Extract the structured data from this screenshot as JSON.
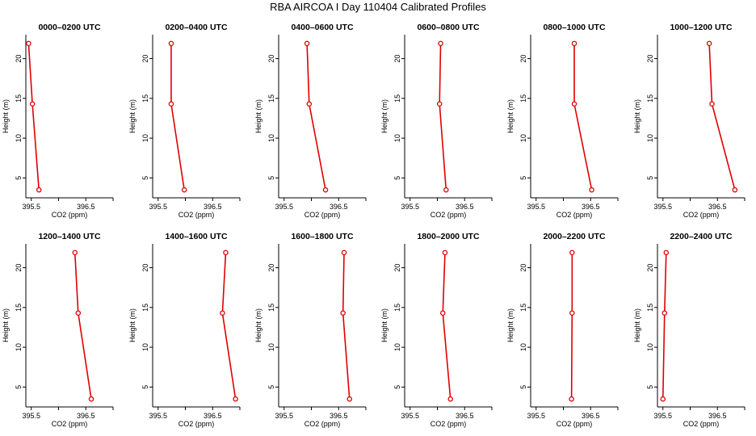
{
  "title": "RBA AIRCOA I  Day 110404  Calibrated Profiles",
  "colors": {
    "line": "#e00000",
    "axis": "#000000",
    "text": "#000000"
  },
  "chart_data": [
    {
      "type": "line",
      "title": "0000–0200 UTC",
      "xlabel": "CO2 (ppm)",
      "ylabel": "Height (m)",
      "xlim": [
        395.4,
        397.0
      ],
      "ylim": [
        2.5,
        23.0
      ],
      "xticks": [
        395.5,
        396.0,
        396.5,
        397.0
      ],
      "xtick_labels": [
        "395.5",
        "",
        "396.5",
        ""
      ],
      "yticks": [
        5,
        10,
        15,
        20
      ],
      "ytick_labels": [
        "5",
        "10",
        "15",
        "20"
      ],
      "series": [
        {
          "name": "CO2",
          "x": [
            395.45,
            395.52,
            395.64
          ],
          "y": [
            21.9,
            14.3,
            3.5
          ]
        }
      ]
    },
    {
      "type": "line",
      "title": "0200–0400 UTC",
      "xlabel": "CO2 (ppm)",
      "ylabel": "Height (m)",
      "xlim": [
        395.4,
        397.0
      ],
      "ylim": [
        2.5,
        23.0
      ],
      "xticks": [
        395.5,
        396.0,
        396.5,
        397.0
      ],
      "xtick_labels": [
        "395.5",
        "",
        "396.5",
        ""
      ],
      "yticks": [
        5,
        10,
        15,
        20
      ],
      "ytick_labels": [
        "5",
        "10",
        "15",
        "20"
      ],
      "series": [
        {
          "name": "CO2",
          "x": [
            395.74,
            395.74,
            395.98
          ],
          "y": [
            21.9,
            14.3,
            3.5
          ]
        }
      ]
    },
    {
      "type": "line",
      "title": "0400–0600 UTC",
      "xlabel": "CO2 (ppm)",
      "ylabel": "Height (m)",
      "xlim": [
        395.4,
        397.0
      ],
      "ylim": [
        2.5,
        23.0
      ],
      "xticks": [
        395.5,
        396.0,
        396.5,
        397.0
      ],
      "xtick_labels": [
        "395.5",
        "",
        "396.5",
        ""
      ],
      "yticks": [
        5,
        10,
        15,
        20
      ],
      "ytick_labels": [
        "5",
        "10",
        "15",
        "20"
      ],
      "series": [
        {
          "name": "CO2",
          "x": [
            395.92,
            395.96,
            396.26
          ],
          "y": [
            21.9,
            14.3,
            3.5
          ]
        }
      ]
    },
    {
      "type": "line",
      "title": "0600–0800 UTC",
      "xlabel": "CO2 (ppm)",
      "ylabel": "Height (m)",
      "xlim": [
        395.4,
        397.0
      ],
      "ylim": [
        2.5,
        23.0
      ],
      "xticks": [
        395.5,
        396.0,
        396.5,
        397.0
      ],
      "xtick_labels": [
        "395.5",
        "",
        "396.5",
        ""
      ],
      "yticks": [
        5,
        10,
        15,
        20
      ],
      "ytick_labels": [
        "5",
        "10",
        "15",
        "20"
      ],
      "series": [
        {
          "name": "CO2",
          "x": [
            396.06,
            396.04,
            396.16
          ],
          "y": [
            21.9,
            14.3,
            3.5
          ]
        }
      ]
    },
    {
      "type": "line",
      "title": "0800–1000 UTC",
      "xlabel": "CO2 (ppm)",
      "ylabel": "Height (m)",
      "xlim": [
        395.4,
        397.0
      ],
      "ylim": [
        2.5,
        23.0
      ],
      "xticks": [
        395.5,
        396.0,
        396.5,
        397.0
      ],
      "xtick_labels": [
        "395.5",
        "",
        "396.5",
        ""
      ],
      "yticks": [
        5,
        10,
        15,
        20
      ],
      "ytick_labels": [
        "5",
        "10",
        "15",
        "20"
      ],
      "series": [
        {
          "name": "CO2",
          "x": [
            396.2,
            396.2,
            396.52
          ],
          "y": [
            21.9,
            14.3,
            3.5
          ]
        }
      ]
    },
    {
      "type": "line",
      "title": "1000–1200 UTC",
      "xlabel": "CO2 (ppm)",
      "ylabel": "Height (m)",
      "xlim": [
        395.4,
        397.0
      ],
      "ylim": [
        2.5,
        23.0
      ],
      "xticks": [
        395.5,
        396.0,
        396.5,
        397.0
      ],
      "xtick_labels": [
        "395.5",
        "",
        "396.5",
        ""
      ],
      "yticks": [
        5,
        10,
        15,
        20
      ],
      "ytick_labels": [
        "5",
        "10",
        "15",
        "20"
      ],
      "series": [
        {
          "name": "CO2",
          "x": [
            396.35,
            396.4,
            396.82
          ],
          "y": [
            21.9,
            14.3,
            3.5
          ]
        }
      ]
    },
    {
      "type": "line",
      "title": "1200–1400 UTC",
      "xlabel": "CO2 (ppm)",
      "ylabel": "Height (m)",
      "xlim": [
        395.4,
        397.0
      ],
      "ylim": [
        2.5,
        23.0
      ],
      "xticks": [
        395.5,
        396.0,
        396.5,
        397.0
      ],
      "xtick_labels": [
        "395.5",
        "",
        "396.5",
        ""
      ],
      "yticks": [
        5,
        10,
        15,
        20
      ],
      "ytick_labels": [
        "5",
        "10",
        "15",
        "20"
      ],
      "series": [
        {
          "name": "CO2",
          "x": [
            396.3,
            396.36,
            396.6
          ],
          "y": [
            21.9,
            14.3,
            3.5
          ]
        }
      ]
    },
    {
      "type": "line",
      "title": "1400–1600 UTC",
      "xlabel": "CO2 (ppm)",
      "ylabel": "Height (m)",
      "xlim": [
        395.4,
        397.0
      ],
      "ylim": [
        2.5,
        23.0
      ],
      "xticks": [
        395.5,
        396.0,
        396.5,
        397.0
      ],
      "xtick_labels": [
        "395.5",
        "",
        "396.5",
        ""
      ],
      "yticks": [
        5,
        10,
        15,
        20
      ],
      "ytick_labels": [
        "5",
        "10",
        "15",
        "20"
      ],
      "series": [
        {
          "name": "CO2",
          "x": [
            396.74,
            396.68,
            396.92
          ],
          "y": [
            21.9,
            14.3,
            3.5
          ]
        }
      ]
    },
    {
      "type": "line",
      "title": "1600–1800 UTC",
      "xlabel": "CO2 (ppm)",
      "ylabel": "Height (m)",
      "xlim": [
        395.4,
        397.0
      ],
      "ylim": [
        2.5,
        23.0
      ],
      "xticks": [
        395.5,
        396.0,
        396.5,
        397.0
      ],
      "xtick_labels": [
        "395.5",
        "",
        "396.5",
        ""
      ],
      "yticks": [
        5,
        10,
        15,
        20
      ],
      "ytick_labels": [
        "5",
        "10",
        "15",
        "20"
      ],
      "series": [
        {
          "name": "CO2",
          "x": [
            396.6,
            396.58,
            396.7
          ],
          "y": [
            21.9,
            14.3,
            3.5
          ]
        }
      ]
    },
    {
      "type": "line",
      "title": "1800–2000 UTC",
      "xlabel": "CO2 (ppm)",
      "ylabel": "Height (m)",
      "xlim": [
        395.4,
        397.0
      ],
      "ylim": [
        2.5,
        23.0
      ],
      "xticks": [
        395.5,
        396.0,
        396.5,
        397.0
      ],
      "xtick_labels": [
        "395.5",
        "",
        "396.5",
        ""
      ],
      "yticks": [
        5,
        10,
        15,
        20
      ],
      "ytick_labels": [
        "5",
        "10",
        "15",
        "20"
      ],
      "series": [
        {
          "name": "CO2",
          "x": [
            396.14,
            396.1,
            396.24
          ],
          "y": [
            21.9,
            14.3,
            3.5
          ]
        }
      ]
    },
    {
      "type": "line",
      "title": "2000–2200 UTC",
      "xlabel": "CO2 (ppm)",
      "ylabel": "Height (m)",
      "xlim": [
        395.4,
        397.0
      ],
      "ylim": [
        2.5,
        23.0
      ],
      "xticks": [
        395.5,
        396.0,
        396.5,
        397.0
      ],
      "xtick_labels": [
        "395.5",
        "",
        "396.5",
        ""
      ],
      "yticks": [
        5,
        10,
        15,
        20
      ],
      "ytick_labels": [
        "5",
        "10",
        "15",
        "20"
      ],
      "series": [
        {
          "name": "CO2",
          "x": [
            396.16,
            396.16,
            396.15
          ],
          "y": [
            21.9,
            14.3,
            3.5
          ]
        }
      ]
    },
    {
      "type": "line",
      "title": "2200–2400 UTC",
      "xlabel": "CO2 (ppm)",
      "ylabel": "Height (m)",
      "xlim": [
        395.4,
        397.0
      ],
      "ylim": [
        2.5,
        23.0
      ],
      "xticks": [
        395.5,
        396.0,
        396.5,
        397.0
      ],
      "xtick_labels": [
        "395.5",
        "",
        "396.5",
        ""
      ],
      "yticks": [
        5,
        10,
        15,
        20
      ],
      "ytick_labels": [
        "5",
        "10",
        "15",
        "20"
      ],
      "series": [
        {
          "name": "CO2",
          "x": [
            395.56,
            395.53,
            395.5
          ],
          "y": [
            21.9,
            14.3,
            3.5
          ]
        }
      ]
    }
  ]
}
